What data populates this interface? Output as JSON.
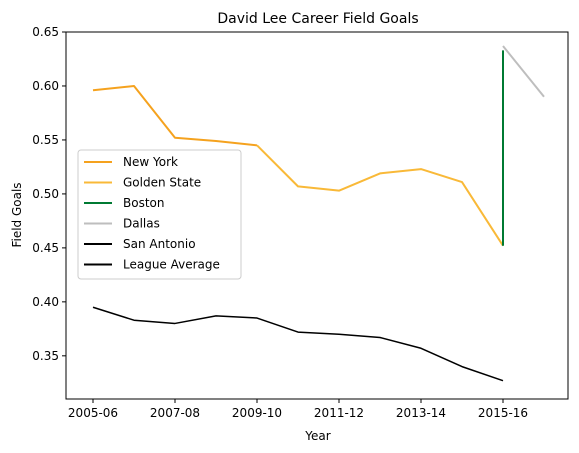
{
  "chart_data": {
    "type": "line",
    "title": "David Lee  Career Field Goals",
    "xlabel": "Year",
    "ylabel": "Field Goals",
    "x": [
      "2005-06",
      "2006-07",
      "2007-08",
      "2008-09",
      "2009-10",
      "2010-11",
      "2011-12",
      "2012-13",
      "2013-14",
      "2014-15",
      "2015-16",
      "2016-17"
    ],
    "x_ticks": [
      "2005-06",
      "2007-08",
      "2009-10",
      "2011-12",
      "2013-14",
      "2015-16"
    ],
    "ylim": [
      0.31,
      0.65
    ],
    "y_ticks": [
      0.35,
      0.4,
      0.45,
      0.5,
      0.55,
      0.6,
      0.65
    ],
    "grid": false,
    "legend_position": "center-left",
    "series": [
      {
        "name": "New York",
        "color": "#F5A21E",
        "points": [
          [
            0,
            0.596
          ],
          [
            1,
            0.6
          ],
          [
            2,
            0.552
          ],
          [
            3,
            0.549
          ],
          [
            4,
            0.545
          ]
        ]
      },
      {
        "name": "Golden State",
        "color": "#F9B938",
        "points": [
          [
            4,
            0.545
          ],
          [
            5,
            0.507
          ],
          [
            6,
            0.503
          ],
          [
            7,
            0.519
          ],
          [
            8,
            0.523
          ],
          [
            9,
            0.511
          ],
          [
            10,
            0.452
          ]
        ]
      },
      {
        "name": "Boston",
        "color": "#007A33",
        "points": [
          [
            10,
            0.452
          ],
          [
            10,
            0.633
          ]
        ]
      },
      {
        "name": "Dallas",
        "color": "#BEBEBE",
        "points": [
          [
            10,
            0.637
          ],
          [
            11,
            0.59
          ]
        ]
      },
      {
        "name": "San Antonio",
        "color": "#000000",
        "points": []
      },
      {
        "name": "League Average",
        "color": "#000000",
        "points": [
          [
            0,
            0.395
          ],
          [
            1,
            0.383
          ],
          [
            2,
            0.38
          ],
          [
            3,
            0.387
          ],
          [
            4,
            0.385
          ],
          [
            5,
            0.372
          ],
          [
            6,
            0.37
          ],
          [
            7,
            0.367
          ],
          [
            8,
            0.357
          ],
          [
            9,
            0.34
          ],
          [
            10,
            0.327
          ]
        ]
      }
    ]
  }
}
